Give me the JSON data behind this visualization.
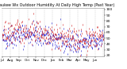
{
  "title": "Milwaukee Wx Outdoor Humidity At Daily High Temp (Past Year)",
  "ylim": [
    18,
    102
  ],
  "yticks": [
    20,
    30,
    40,
    50,
    60,
    70,
    80,
    90,
    100
  ],
  "num_points": 365,
  "background_color": "#ffffff",
  "grid_color": "#aaaaaa",
  "title_fontsize": 3.5,
  "tick_fontsize": 3.2,
  "red_color": "#cc0000",
  "blue_color": "#0000cc",
  "seed": 42,
  "month_labels": [
    "Jul",
    "Aug",
    "Sep",
    "Oct",
    "Nov",
    "Dec",
    "Jan",
    "Feb",
    "Mar",
    "Apr",
    "May",
    "Jun",
    "Jul"
  ],
  "num_months": 13
}
